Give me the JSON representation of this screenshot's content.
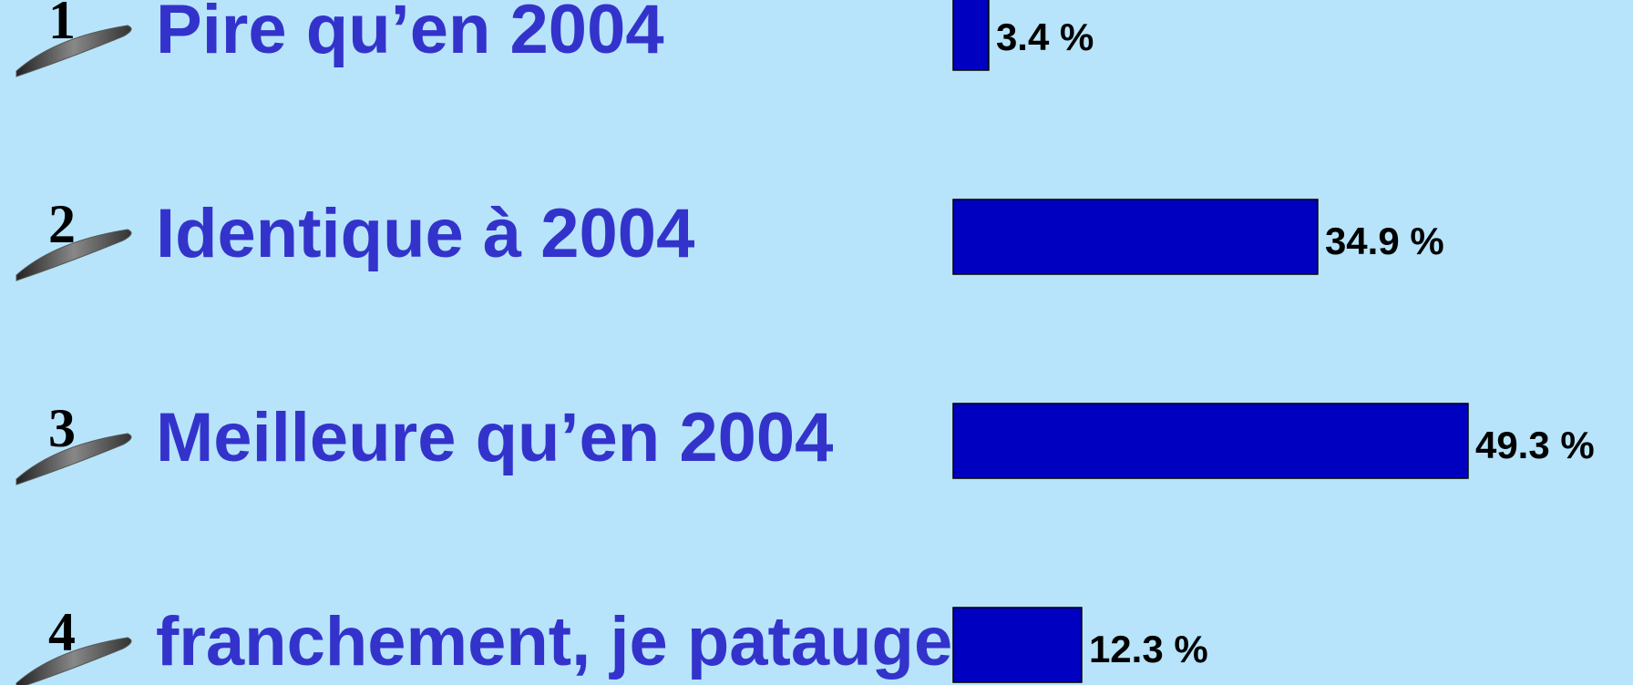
{
  "chart_data": {
    "type": "bar",
    "orientation": "horizontal",
    "markers": [
      "1",
      "2",
      "3",
      "4"
    ],
    "categories": [
      "Pire qu’en 2004",
      "Identique à 2004",
      "Meilleure qu’en 2004",
      "franchement, je patauge"
    ],
    "values": [
      3.4,
      34.9,
      49.3,
      12.3
    ],
    "value_labels": [
      "3.4 %",
      "34.9 %",
      "49.3 %",
      "12.3 %"
    ],
    "color": "#0000c0"
  }
}
